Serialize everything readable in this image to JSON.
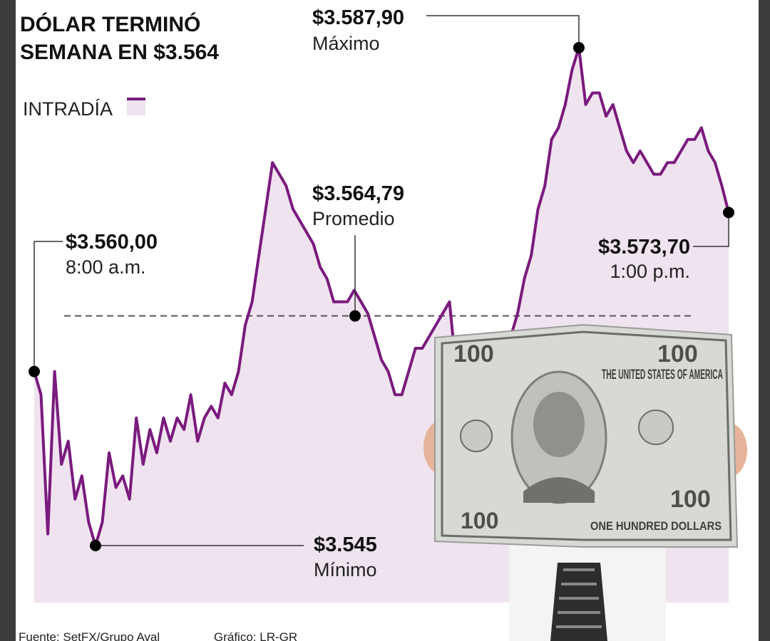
{
  "title_lines": [
    "DÓLAR TERMINÓ",
    "SEMANA EN $3.564"
  ],
  "legend_label": "INTRADÍA",
  "colors": {
    "line": "#7a1a7e",
    "area": "#efe3ef",
    "text": "#111111",
    "frame": "#3c3c3c"
  },
  "annotations": {
    "open": {
      "value": "$3.560,00",
      "label": "8:00 a.m."
    },
    "max": {
      "value": "$3.587,90",
      "label": "Máximo"
    },
    "avg": {
      "value": "$3.564,79",
      "label": "Promedio"
    },
    "min": {
      "value": "$3.545",
      "label": "Mínimo"
    },
    "close": {
      "value": "$3.573,70",
      "label": "1:00 p.m."
    }
  },
  "footer": {
    "source": "Fuente: SetFX/Grupo Aval",
    "credit": "Gráfico: LR-GR"
  },
  "illustration": {
    "banknote_name": "one-hundred-dollar-bill",
    "note_text": [
      "THE UNITED STATES OF AMERICA",
      "100",
      "ONE HUNDRED DOLLARS"
    ]
  },
  "chart_data": {
    "type": "line",
    "title": "DÓLAR TERMINÓ SEMANA EN $3.564",
    "series": [
      {
        "name": "INTRADÍA",
        "values": [
          3560,
          3558,
          3546,
          3560,
          3552,
          3554,
          3549,
          3551,
          3547,
          3545,
          3547,
          3553,
          3550,
          3551,
          3549,
          3556,
          3552,
          3555,
          3553,
          3556,
          3554,
          3556,
          3555,
          3558,
          3554,
          3556,
          3557,
          3556,
          3559,
          3558,
          3560,
          3564,
          3566,
          3570,
          3574,
          3578,
          3577,
          3576,
          3574,
          3573,
          3572,
          3571,
          3569,
          3568,
          3566,
          3566,
          3566,
          3567,
          3566,
          3565,
          3563,
          3561,
          3560,
          3558,
          3558,
          3560,
          3562,
          3562,
          3563,
          3564,
          3565,
          3566,
          3560,
          3558,
          3558,
          3559,
          3559,
          3557,
          3560,
          3561,
          3563,
          3565,
          3568,
          3570,
          3574,
          3576,
          3580,
          3581,
          3583,
          3586,
          3587.9,
          3583,
          3584,
          3584,
          3582,
          3583,
          3581,
          3579,
          3578,
          3579,
          3578,
          3577,
          3577,
          3578,
          3578,
          3579,
          3580,
          3580,
          3581,
          3579,
          3578,
          3576,
          3573.7
        ]
      }
    ],
    "x_start": "8:00 a.m.",
    "x_end": "1:00 p.m.",
    "average": 3564.79,
    "max": 3587.9,
    "min": 3545,
    "open": 3560.0,
    "close": 3573.7,
    "axes_shown": false,
    "grid": false,
    "legend_placement": "top-left"
  }
}
